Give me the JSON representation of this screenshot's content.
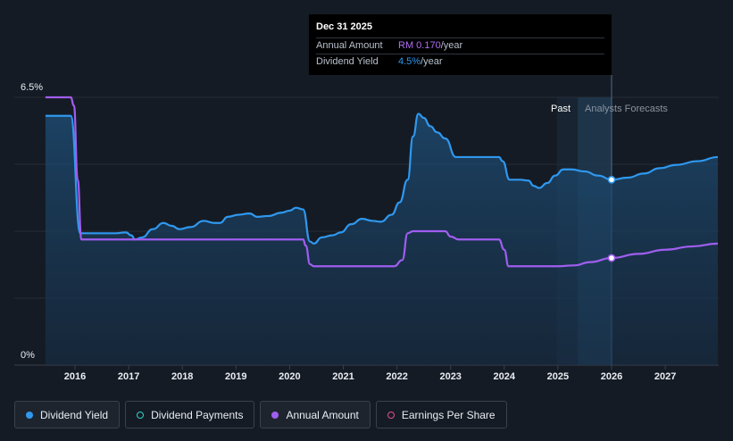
{
  "tooltip": {
    "date": "Dec 31 2025",
    "rows": [
      {
        "key": "Annual Amount",
        "value": "RM 0.170",
        "suffix": "/year"
      },
      {
        "key": "Dividend Yield",
        "value": "4.5%",
        "suffix": "/year"
      }
    ]
  },
  "legend": [
    {
      "label": "Dividend Yield",
      "color": "#2f98ef",
      "filled": true
    },
    {
      "label": "Dividend Payments",
      "color": "#2fd0c6",
      "filled": false
    },
    {
      "label": "Annual Amount",
      "color": "#a05ef0",
      "filled": true
    },
    {
      "label": "Earnings Per Share",
      "color": "#e0508a",
      "filled": false
    }
  ],
  "regions": {
    "past": "Past",
    "forecast": "Analysts Forecasts"
  },
  "chart_data": {
    "type": "line",
    "title": "",
    "x_ticks": [
      "2016",
      "2017",
      "2018",
      "2019",
      "2020",
      "2021",
      "2022",
      "2023",
      "2024",
      "2025",
      "2026",
      "2027"
    ],
    "y_ticks": [
      "0%",
      "6.5%"
    ],
    "xlim": [
      2015.4,
      2027.98
    ],
    "ylim": [
      0,
      6.5
    ],
    "forecast_start": 2026.0,
    "grid": true,
    "series": [
      {
        "name": "Dividend Yield",
        "color": "#2f98ef",
        "fill": true,
        "points": [
          [
            2015.45,
            6.05
          ],
          [
            2015.92,
            6.05
          ],
          [
            2016.1,
            3.2
          ],
          [
            2016.4,
            3.2
          ],
          [
            2016.75,
            3.2
          ],
          [
            2016.95,
            3.22
          ],
          [
            2017.05,
            3.15
          ],
          [
            2017.12,
            3.05
          ],
          [
            2017.25,
            3.1
          ],
          [
            2017.45,
            3.3
          ],
          [
            2017.65,
            3.45
          ],
          [
            2017.8,
            3.38
          ],
          [
            2017.95,
            3.3
          ],
          [
            2018.15,
            3.35
          ],
          [
            2018.4,
            3.5
          ],
          [
            2018.6,
            3.45
          ],
          [
            2018.7,
            3.45
          ],
          [
            2018.85,
            3.6
          ],
          [
            2019.05,
            3.65
          ],
          [
            2019.25,
            3.68
          ],
          [
            2019.4,
            3.6
          ],
          [
            2019.6,
            3.62
          ],
          [
            2019.85,
            3.7
          ],
          [
            2020.0,
            3.75
          ],
          [
            2020.12,
            3.82
          ],
          [
            2020.25,
            3.78
          ],
          [
            2020.38,
            3.0
          ],
          [
            2020.45,
            2.95
          ],
          [
            2020.6,
            3.1
          ],
          [
            2020.8,
            3.15
          ],
          [
            2020.95,
            3.22
          ],
          [
            2021.15,
            3.42
          ],
          [
            2021.35,
            3.55
          ],
          [
            2021.55,
            3.5
          ],
          [
            2021.7,
            3.48
          ],
          [
            2021.9,
            3.65
          ],
          [
            2022.05,
            3.95
          ],
          [
            2022.2,
            4.5
          ],
          [
            2022.3,
            5.55
          ],
          [
            2022.4,
            6.1
          ],
          [
            2022.5,
            6.0
          ],
          [
            2022.62,
            5.8
          ],
          [
            2022.75,
            5.65
          ],
          [
            2022.9,
            5.5
          ],
          [
            2023.1,
            5.05
          ],
          [
            2023.3,
            5.05
          ],
          [
            2023.6,
            5.05
          ],
          [
            2023.9,
            5.05
          ],
          [
            2023.97,
            4.95
          ],
          [
            2024.1,
            4.5
          ],
          [
            2024.3,
            4.5
          ],
          [
            2024.45,
            4.48
          ],
          [
            2024.55,
            4.35
          ],
          [
            2024.65,
            4.3
          ],
          [
            2024.8,
            4.42
          ],
          [
            2024.95,
            4.6
          ],
          [
            2025.1,
            4.75
          ],
          [
            2025.25,
            4.75
          ],
          [
            2025.5,
            4.7
          ],
          [
            2025.75,
            4.6
          ],
          [
            2026.0,
            4.5
          ],
          [
            2026.3,
            4.55
          ],
          [
            2026.6,
            4.65
          ],
          [
            2026.9,
            4.78
          ],
          [
            2027.2,
            4.86
          ],
          [
            2027.6,
            4.95
          ],
          [
            2027.98,
            5.05
          ]
        ]
      },
      {
        "name": "Annual Amount",
        "color": "#a05ef0",
        "fill": false,
        "points": [
          [
            2015.45,
            6.5
          ],
          [
            2015.92,
            6.5
          ],
          [
            2015.98,
            6.3
          ],
          [
            2016.05,
            4.5
          ],
          [
            2016.12,
            3.05
          ],
          [
            2016.5,
            3.05
          ],
          [
            2017.0,
            3.05
          ],
          [
            2018.0,
            3.05
          ],
          [
            2019.0,
            3.05
          ],
          [
            2020.0,
            3.05
          ],
          [
            2020.25,
            3.05
          ],
          [
            2020.3,
            2.9
          ],
          [
            2020.38,
            2.45
          ],
          [
            2020.45,
            2.4
          ],
          [
            2021.0,
            2.4
          ],
          [
            2021.5,
            2.4
          ],
          [
            2021.95,
            2.4
          ],
          [
            2022.1,
            2.55
          ],
          [
            2022.2,
            3.2
          ],
          [
            2022.3,
            3.25
          ],
          [
            2022.9,
            3.25
          ],
          [
            2023.0,
            3.12
          ],
          [
            2023.15,
            3.05
          ],
          [
            2023.5,
            3.05
          ],
          [
            2023.9,
            3.05
          ],
          [
            2024.0,
            2.8
          ],
          [
            2024.08,
            2.4
          ],
          [
            2024.5,
            2.4
          ],
          [
            2025.0,
            2.4
          ],
          [
            2025.3,
            2.42
          ],
          [
            2025.6,
            2.5
          ],
          [
            2026.0,
            2.6
          ],
          [
            2026.5,
            2.7
          ],
          [
            2027.0,
            2.8
          ],
          [
            2027.5,
            2.88
          ],
          [
            2027.98,
            2.95
          ]
        ]
      }
    ],
    "highlight_x": 2026.0
  }
}
